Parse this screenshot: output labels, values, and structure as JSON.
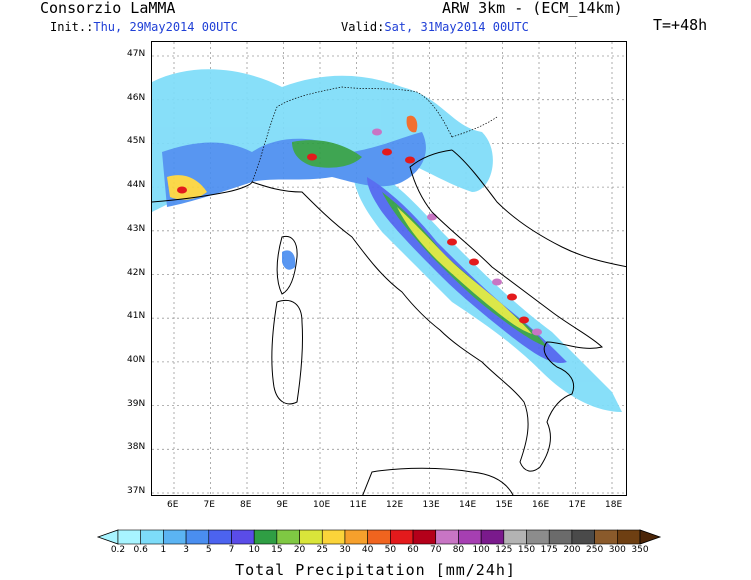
{
  "header": {
    "institution": "Consorzio LaMMA",
    "model": "ARW 3km - (ECM_14km)",
    "init_label": "Init.:",
    "init_value": "Thu, 29May2014 00UTC",
    "valid_label": "Valid:",
    "valid_value": "Sat, 31May2014 00UTC",
    "forecast_step": "T=+48h"
  },
  "map": {
    "lat_labels": [
      "47N",
      "46N",
      "45N",
      "44N",
      "43N",
      "42N",
      "41N",
      "40N",
      "39N",
      "38N",
      "37N"
    ],
    "lon_labels": [
      "6E",
      "7E",
      "8E",
      "9E",
      "10E",
      "11E",
      "12E",
      "13E",
      "14E",
      "15E",
      "16E",
      "17E",
      "18E"
    ],
    "precip_areas": [
      {
        "name": "alps-west",
        "level": 3
      },
      {
        "name": "alps-central",
        "level": 4
      },
      {
        "name": "po-valley",
        "level": 5
      },
      {
        "name": "liguria",
        "level": 6
      },
      {
        "name": "provence",
        "level": 5
      },
      {
        "name": "apennines-north",
        "level": 7
      },
      {
        "name": "apennines-central",
        "level": 8
      },
      {
        "name": "apennines-south",
        "level": 8
      },
      {
        "name": "calabria",
        "level": 3
      },
      {
        "name": "corsica",
        "level": 4
      },
      {
        "name": "croatia-coast",
        "level": 2
      },
      {
        "name": "friuli",
        "level": 8
      }
    ]
  },
  "colorbar": {
    "title": "Total Precipitation [mm/24h]",
    "thresholds": [
      "0.2",
      "0.6",
      "1",
      "3",
      "5",
      "7",
      "10",
      "15",
      "20",
      "25",
      "30",
      "40",
      "50",
      "60",
      "70",
      "80",
      "100",
      "125",
      "150",
      "175",
      "200",
      "250",
      "300",
      "350"
    ],
    "colors": [
      "#a8f4ff",
      "#7ddcf9",
      "#5bb4f3",
      "#4a8ef0",
      "#4c63ef",
      "#5a4ce8",
      "#2f9e44",
      "#7fc843",
      "#d9e53a",
      "#fbd43a",
      "#f6a02c",
      "#f0641f",
      "#e31a1c",
      "#b4001a",
      "#c875c4",
      "#a63fb2",
      "#7a1a8c",
      "#b3b3b3",
      "#8c8c8c",
      "#6b6b6b",
      "#4a4a4a",
      "#8a5a2b",
      "#6e3f12",
      "#4b2508"
    ]
  }
}
